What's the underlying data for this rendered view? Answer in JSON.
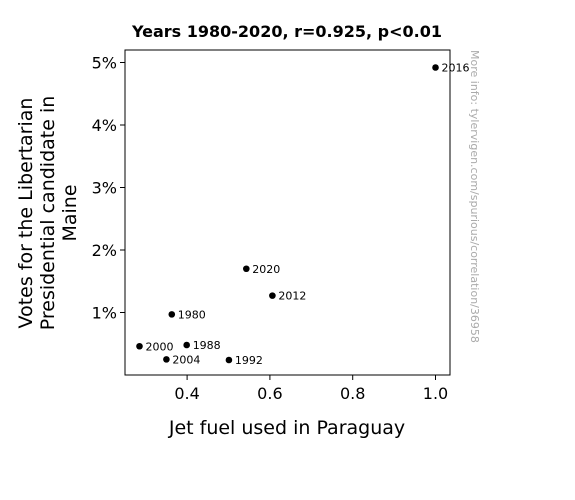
{
  "chart_data": {
    "type": "scatter",
    "title": "Years 1980-2020, r=0.925, p<0.01",
    "xlabel": "Jet fuel used in Paraguay",
    "ylabel_lines": [
      "Votes for the Libertarian",
      "Presidential candidate in",
      "Maine"
    ],
    "xlim": [
      0.25,
      1.035
    ],
    "ylim": [
      0.0,
      5.2
    ],
    "x_ticks": [
      {
        "value": 0.4,
        "label": "0.4"
      },
      {
        "value": 0.6,
        "label": "0.6"
      },
      {
        "value": 0.8,
        "label": "0.8"
      },
      {
        "value": 1.0,
        "label": "1.0"
      }
    ],
    "y_ticks": [
      {
        "value": 1,
        "label": "1%"
      },
      {
        "value": 2,
        "label": "2%"
      },
      {
        "value": 3,
        "label": "3%"
      },
      {
        "value": 4,
        "label": "4%"
      },
      {
        "value": 5,
        "label": "5%"
      }
    ],
    "grid": false,
    "points": [
      {
        "label": "1980",
        "x": 0.363,
        "y": 0.97
      },
      {
        "label": "1988",
        "x": 0.399,
        "y": 0.48
      },
      {
        "label": "1992",
        "x": 0.501,
        "y": 0.24
      },
      {
        "label": "2000",
        "x": 0.285,
        "y": 0.46
      },
      {
        "label": "2004",
        "x": 0.35,
        "y": 0.25
      },
      {
        "label": "2012",
        "x": 0.606,
        "y": 1.27
      },
      {
        "label": "2016",
        "x": 1.0,
        "y": 4.92
      },
      {
        "label": "2020",
        "x": 0.543,
        "y": 1.7
      }
    ],
    "point_color": "#000000",
    "watermark": "More info: tylervigen.com/spurious/correlation/3695​8"
  }
}
